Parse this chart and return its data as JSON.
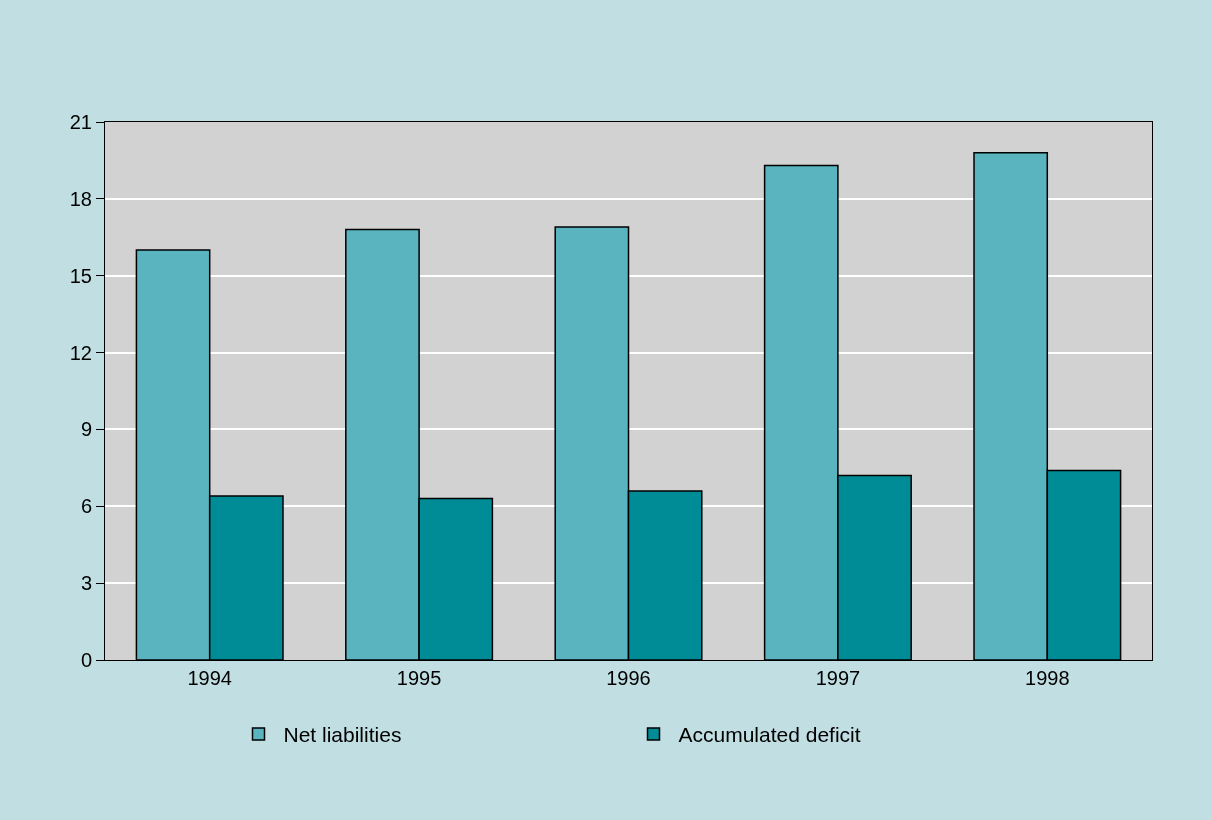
{
  "chart_data": {
    "type": "bar",
    "categories": [
      "1994",
      "1995",
      "1996",
      "1997",
      "1998"
    ],
    "series": [
      {
        "name": "Net liabilities",
        "color": "#5ab4bf",
        "values": [
          16.0,
          16.8,
          16.9,
          19.3,
          19.8
        ]
      },
      {
        "name": "Accumulated deficit",
        "color": "#008c96",
        "values": [
          6.4,
          6.3,
          6.6,
          7.2,
          7.4
        ]
      }
    ],
    "ylim": [
      0,
      21
    ],
    "yticks": [
      0,
      3,
      6,
      9,
      12,
      15,
      18,
      21
    ],
    "grid": "y",
    "legend": "bottom"
  }
}
